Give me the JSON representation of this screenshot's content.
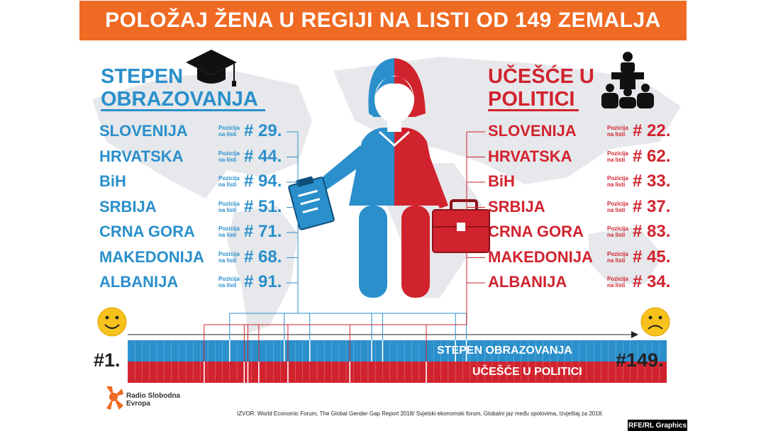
{
  "title": "POLOŽAJ ŽENA U REGIJI NA LISTI OD 149 ZEMALJA",
  "left_heading": {
    "line1": "STEPEN",
    "line2": "OBRAZOVANJA"
  },
  "right_heading": {
    "line1": "UČEŠĆE U",
    "line2": "POLITICI"
  },
  "position_label_line1": "Pozicija",
  "position_label_line2": "na listi",
  "scale": {
    "first": "#1.",
    "last": "#149.",
    "max": 149
  },
  "bar_labels": {
    "education": "STEPEN OBRAZOVANJA",
    "politics": "UČEŠĆE U POLITICI"
  },
  "source": "IZVOR: World Economic Forum, The Global Gender Gap Report 2018/ Svjetski ekonomski forum, Globalni jaz među spolovima, Izvještaj za 2018.",
  "logo": {
    "line1": "Radio Slobodna",
    "line2": "Evropa"
  },
  "credit": "RFE/RL Graphics",
  "colors": {
    "education": "#2a8fcb",
    "politics": "#d1232e",
    "banner": "#ef6a22"
  },
  "chart_data": {
    "type": "table",
    "categories": [
      "SLOVENIJA",
      "HRVATSKA",
      "BiH",
      "SRBIJA",
      "CRNA GORA",
      "MAKEDONIJA",
      "ALBANIJA"
    ],
    "series": [
      {
        "name": "STEPEN OBRAZOVANJA",
        "values": [
          29,
          44,
          94,
          51,
          71,
          68,
          91
        ],
        "labels": [
          "# 29.",
          "# 44.",
          "# 94.",
          "# 51.",
          "# 71.",
          "# 68.",
          "# 91."
        ]
      },
      {
        "name": "UČEŠĆE U POLITICI",
        "values": [
          22,
          62,
          33,
          37,
          83,
          45,
          34
        ],
        "labels": [
          "# 22.",
          "# 62.",
          "# 33.",
          "# 37.",
          "# 83.",
          "# 45.",
          "# 34."
        ]
      }
    ],
    "range": [
      1,
      149
    ]
  }
}
